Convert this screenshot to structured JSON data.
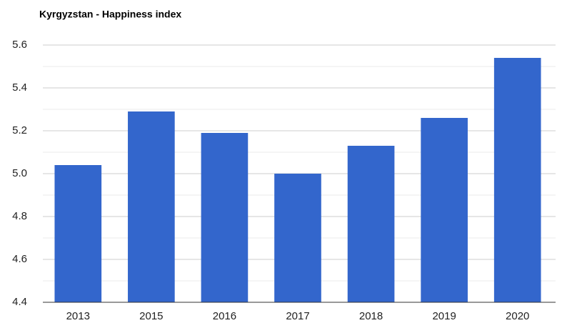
{
  "chart_data": {
    "type": "bar",
    "title": "Kyrgyzstan - Happiness index",
    "categories": [
      "2013",
      "2015",
      "2016",
      "2017",
      "2018",
      "2019",
      "2020"
    ],
    "values": [
      5.04,
      5.29,
      5.19,
      5.0,
      5.13,
      5.26,
      5.54
    ],
    "color": "#3366cc",
    "ylim": [
      4.4,
      5.6
    ],
    "yticks": [
      {
        "value": 4.4,
        "label": "4.4"
      },
      {
        "value": 4.6,
        "label": "4.6"
      },
      {
        "value": 4.8,
        "label": "4.8"
      },
      {
        "value": 5,
        "label": "5.0"
      },
      {
        "value": 5.2,
        "label": "5.2"
      },
      {
        "value": 5.4,
        "label": "5.4"
      },
      {
        "value": 5.6,
        "label": "5.6"
      }
    ],
    "minor_yticks": [
      4.5,
      4.7,
      4.9,
      5.1,
      5.3,
      5.5
    ],
    "grid": true
  }
}
